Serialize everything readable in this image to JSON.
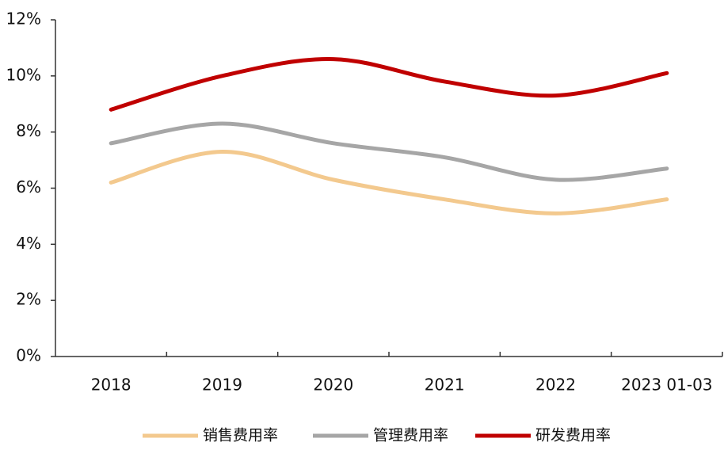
{
  "chart_data": {
    "type": "line",
    "categories": [
      "2018",
      "2019",
      "2020",
      "2021",
      "2022",
      "2023 01-03"
    ],
    "series": [
      {
        "name": "销售费用率",
        "color": "#f3c98e",
        "values": [
          6.2,
          7.3,
          6.3,
          5.6,
          5.1,
          5.6
        ]
      },
      {
        "name": "管理费用率",
        "color": "#a6a6a6",
        "values": [
          7.6,
          8.3,
          7.6,
          7.1,
          6.3,
          6.7
        ]
      },
      {
        "name": "研发费用率",
        "color": "#c00000",
        "values": [
          8.8,
          10.0,
          10.6,
          9.8,
          9.3,
          10.1
        ]
      }
    ],
    "ylim": [
      0,
      12
    ],
    "yticks": [
      {
        "value": 0,
        "label": "0%"
      },
      {
        "value": 2,
        "label": "2%"
      },
      {
        "value": 4,
        "label": "4%"
      },
      {
        "value": 6,
        "label": "6%"
      },
      {
        "value": 8,
        "label": "8%"
      },
      {
        "value": 10,
        "label": "10%"
      },
      {
        "value": 12,
        "label": "12%"
      }
    ],
    "legend": "bottom",
    "smooth": true
  }
}
